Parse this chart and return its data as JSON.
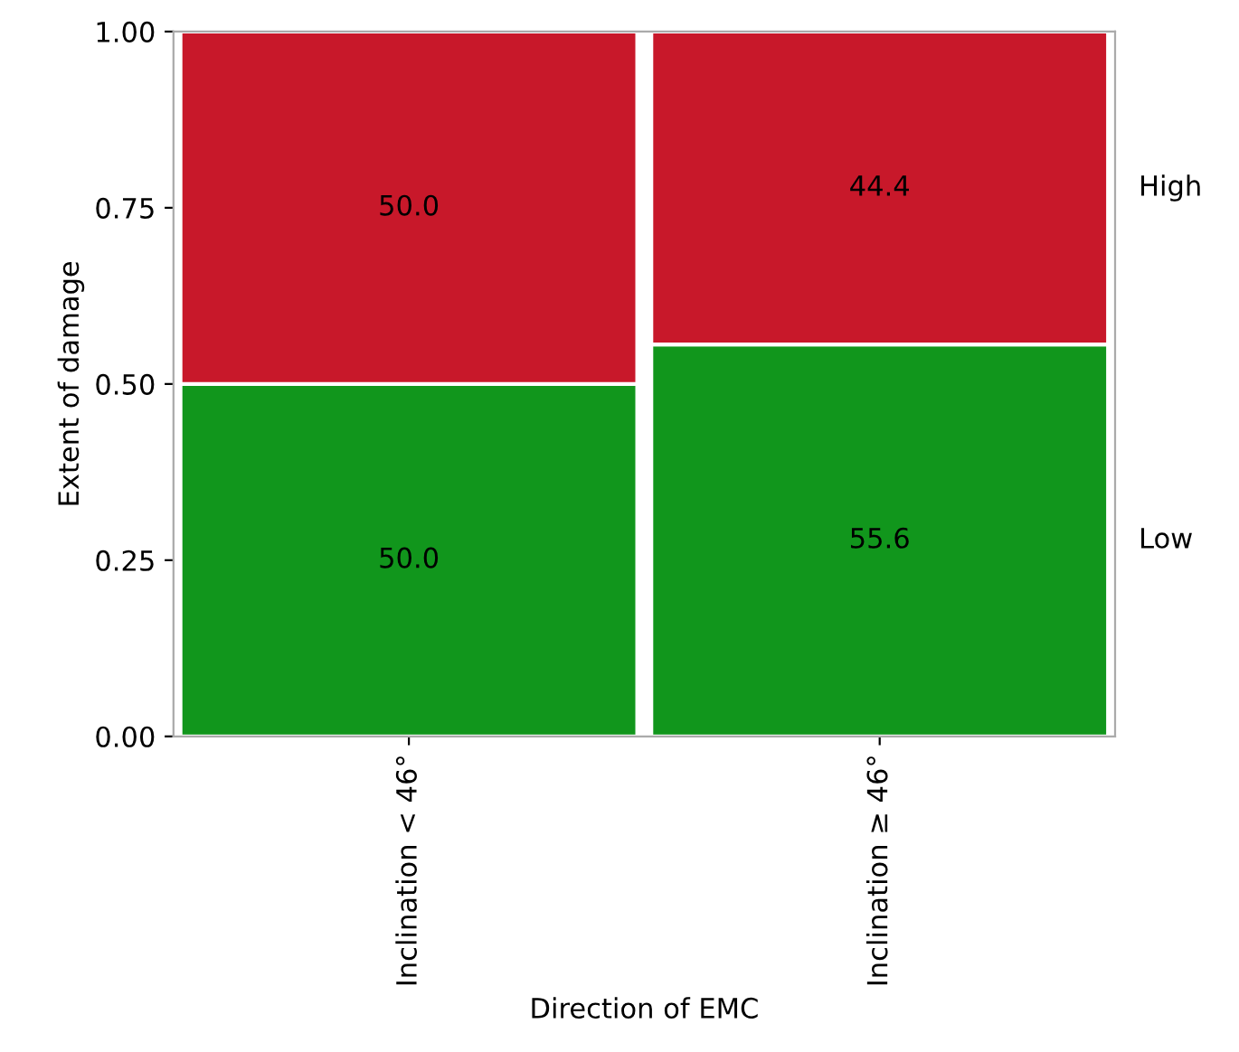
{
  "chart_data": {
    "type": "bar",
    "stacked": true,
    "xlabel": "Direction of EMC",
    "ylabel": "Extent of damage",
    "categories": [
      "Inclination < 46°",
      "Inclination ≥ 46°"
    ],
    "series": [
      {
        "name": "Low",
        "color": "#11961c",
        "values": [
          0.5,
          0.556
        ]
      },
      {
        "name": "High",
        "color": "#c8182a",
        "values": [
          0.5,
          0.444
        ]
      }
    ],
    "annotations": [
      "50.0",
      "55.6",
      "50.0",
      "44.4"
    ],
    "ylim": [
      0,
      1
    ],
    "yticks": [
      {
        "value": 0,
        "label": "0.00"
      },
      {
        "value": 0.25,
        "label": "0.25"
      },
      {
        "value": 0.5,
        "label": "0.50"
      },
      {
        "value": 0.75,
        "label": "0.75"
      },
      {
        "value": 1,
        "label": "1.00"
      }
    ],
    "legend": false,
    "grid": false
  }
}
